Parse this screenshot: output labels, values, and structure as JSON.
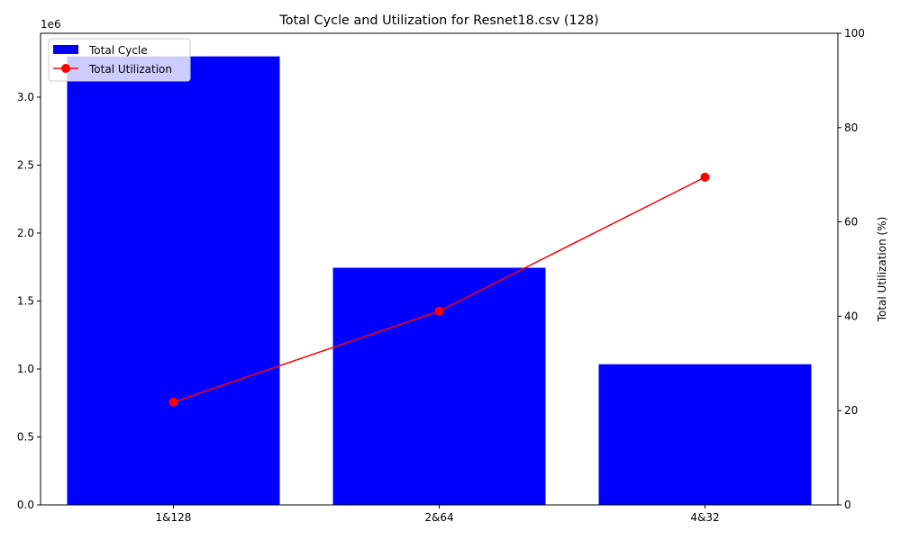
{
  "chart_data": {
    "type": "bar",
    "title": "Total Cycle and Utilization for Resnet18.csv (128)",
    "categories": [
      "1&128",
      "2&64",
      "4&32"
    ],
    "left_axis": {
      "label": "",
      "offset_text": "1e6",
      "scale": 1000000,
      "ylim": [
        0,
        3.47
      ],
      "ticks": [
        0.0,
        0.5,
        1.0,
        1.5,
        2.0,
        2.5,
        3.0
      ],
      "tick_labels": [
        "0.0",
        "0.5",
        "1.0",
        "1.5",
        "2.0",
        "2.5",
        "3.0"
      ]
    },
    "right_axis": {
      "label": "Total Utilization (%)",
      "ylim": [
        0,
        100
      ],
      "ticks": [
        0,
        20,
        40,
        60,
        80,
        100
      ],
      "tick_labels": [
        "0",
        "20",
        "40",
        "60",
        "80",
        "100"
      ]
    },
    "series": [
      {
        "name": "Total Cycle",
        "kind": "bar",
        "axis": "left",
        "color": "#0000ff",
        "values": [
          3300000,
          1745000,
          1035000
        ]
      },
      {
        "name": "Total Utilization",
        "kind": "line",
        "axis": "right",
        "color": "#ff0000",
        "values": [
          21.8,
          41.1,
          69.5
        ]
      }
    ],
    "legend": {
      "placement": "top-left",
      "entries": [
        "Total Cycle",
        "Total Utilization"
      ]
    },
    "grid": false
  }
}
